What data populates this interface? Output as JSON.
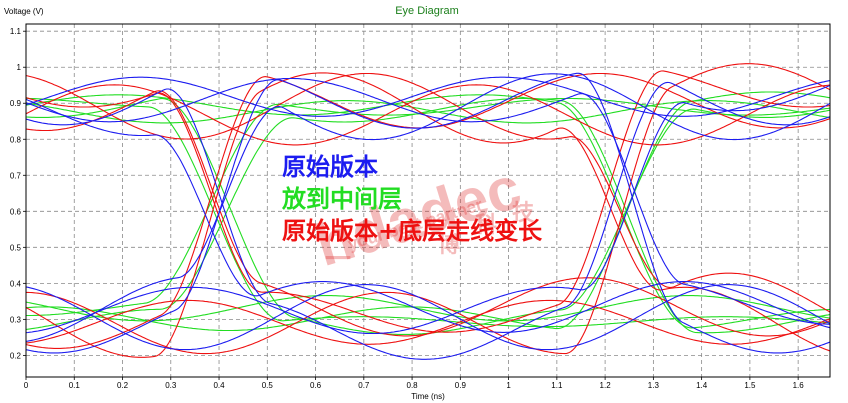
{
  "chart_data": {
    "type": "line",
    "title": "Eye Diagram",
    "xlabel": "Time (ns)",
    "ylabel": "Voltage (V)",
    "xlim": [
      0,
      1.666
    ],
    "ylim": [
      0.14,
      1.12
    ],
    "xticks": [
      "0",
      "0.1",
      "0.2",
      "0.3",
      "0.4",
      "0.5",
      "0.6",
      "0.7",
      "0.8",
      "0.9",
      "1",
      "1.1",
      "1.2",
      "1.3",
      "1.4",
      "1.5",
      "1.6"
    ],
    "yticks": [
      "0.2",
      "0.3",
      "0.4",
      "0.5",
      "0.6",
      "0.7",
      "0.8",
      "0.9",
      "1",
      "1.1"
    ],
    "grid": true,
    "bit_period_ns": 0.833,
    "crossing_times_ns": [
      0.4,
      1.233
    ],
    "series": [
      {
        "name": "原始版本",
        "color": "#1c1cf0",
        "high_level": 0.91,
        "low_level": 0.31,
        "high_spread": 0.11,
        "low_spread": 0.08
      },
      {
        "name": "放到中间层",
        "color": "#22dd22",
        "high_level": 0.89,
        "low_level": 0.31,
        "high_spread": 0.035,
        "low_spread": 0.05
      },
      {
        "name": "原始版本+底层走线变长",
        "color": "#ee1111",
        "high_level": 0.9,
        "low_level": 0.3,
        "high_spread": 0.13,
        "low_spread": 0.1
      }
    ],
    "legend_placement": "center"
  },
  "watermark": {
    "logo": "hdadec",
    "tagline": "your best partner",
    "chars": [
      "一",
      "博",
      "科",
      "技"
    ]
  }
}
